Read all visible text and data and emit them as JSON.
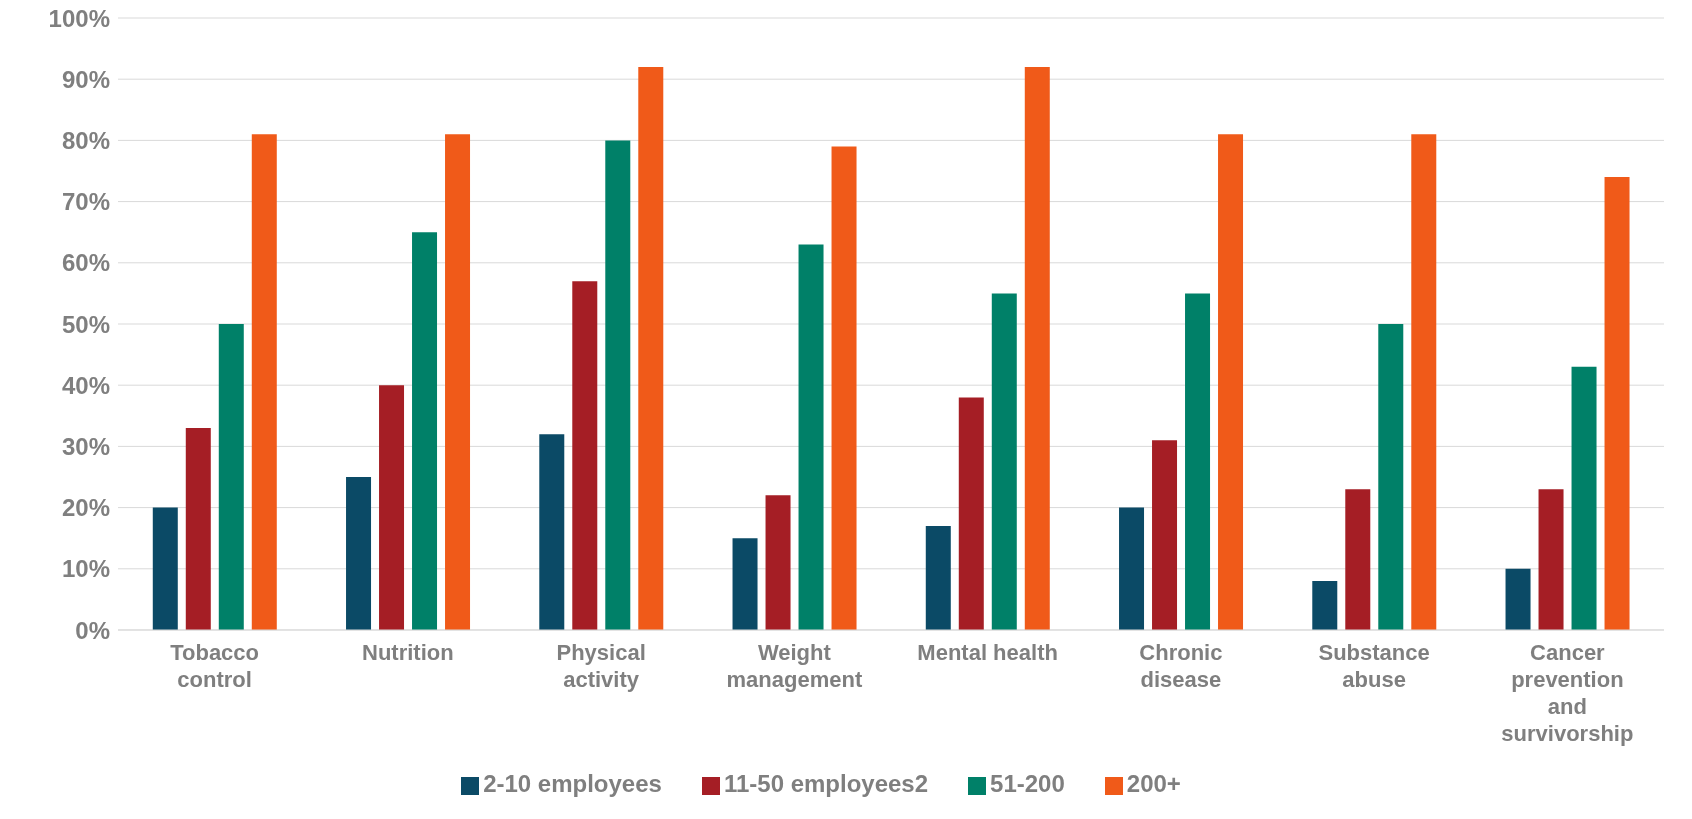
{
  "chart_data": {
    "type": "bar",
    "categories": [
      "Tobacco control",
      "Nutrition",
      "Physical activity",
      "Weight management",
      "Mental health",
      "Chronic disease",
      "Substance abuse",
      "Cancer prevention and survivorship"
    ],
    "series": [
      {
        "name": "2-10 employees",
        "color": "#0b4a66",
        "values": [
          20,
          25,
          32,
          15,
          17,
          20,
          8,
          10
        ]
      },
      {
        "name": "11-50 employees2",
        "color": "#a51e25",
        "values": [
          33,
          40,
          57,
          22,
          38,
          31,
          23,
          23
        ]
      },
      {
        "name": "51-200",
        "color": "#008068",
        "values": [
          50,
          65,
          80,
          63,
          55,
          55,
          50,
          43
        ]
      },
      {
        "name": "200+",
        "color": "#f05a19",
        "values": [
          81,
          81,
          92,
          79,
          92,
          81,
          81,
          74
        ]
      }
    ],
    "ylim": [
      0,
      100
    ],
    "yticks": [
      {
        "value": 0,
        "label": "0%"
      },
      {
        "value": 10,
        "label": "10%"
      },
      {
        "value": 20,
        "label": "20%"
      },
      {
        "value": 30,
        "label": "30%"
      },
      {
        "value": 40,
        "label": "40%"
      },
      {
        "value": 50,
        "label": "50%"
      },
      {
        "value": 60,
        "label": "60%"
      },
      {
        "value": 70,
        "label": "70%"
      },
      {
        "value": 80,
        "label": "80%"
      },
      {
        "value": 90,
        "label": "90%"
      },
      {
        "value": 100,
        "label": "100%"
      }
    ],
    "grid": "y",
    "legend": "bottom"
  }
}
